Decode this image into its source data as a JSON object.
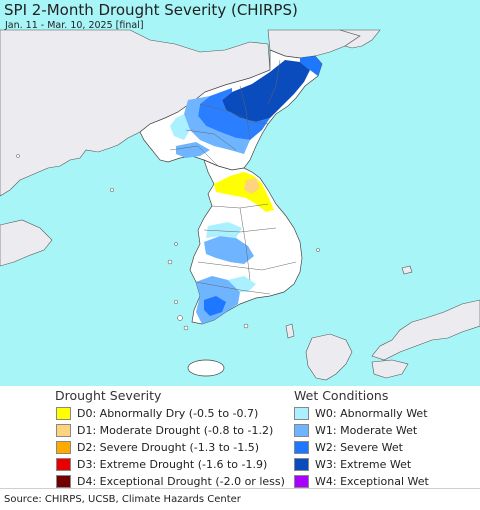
{
  "header": {
    "title": "SPI 2-Month Drought Severity (CHIRPS)",
    "subtitle": "Jan. 11 - Mar. 10, 2025 [final]"
  },
  "map": {
    "sea_color": "#a8f5f8",
    "land_neutral_color": "#ffffff",
    "outside_land_color": "#ebebf0"
  },
  "legend": {
    "drought": {
      "heading": "Drought Severity",
      "items": [
        {
          "code": "D0",
          "label": "D0: Abnormally Dry (-0.5 to -0.7)",
          "color": "#ffff00"
        },
        {
          "code": "D1",
          "label": "D1: Moderate Drought (-0.8 to -1.2)",
          "color": "#fcd37f"
        },
        {
          "code": "D2",
          "label": "D2: Severe Drought (-1.3 to -1.5)",
          "color": "#ffaa00"
        },
        {
          "code": "D3",
          "label": "D3: Extreme Drought (-1.6 to -1.9)",
          "color": "#e60000"
        },
        {
          "code": "D4",
          "label": "D4: Exceptional Drought (-2.0 or less)",
          "color": "#730000"
        }
      ]
    },
    "wet": {
      "heading": "Wet Conditions",
      "items": [
        {
          "code": "W0",
          "label": "W0: Abnormally Wet",
          "color": "#aaf0ff"
        },
        {
          "code": "W1",
          "label": "W1: Moderate Wet",
          "color": "#6eb4ff"
        },
        {
          "code": "W2",
          "label": "W2: Severe Wet",
          "color": "#1e78ff"
        },
        {
          "code": "W3",
          "label": "W3: Extreme Wet",
          "color": "#0a4bbe"
        },
        {
          "code": "W4",
          "label": "W4: Exceptional Wet",
          "color": "#aa00ff"
        }
      ]
    }
  },
  "footer": {
    "source": "Source: CHIRPS, UCSB, Climate Hazards Center"
  }
}
